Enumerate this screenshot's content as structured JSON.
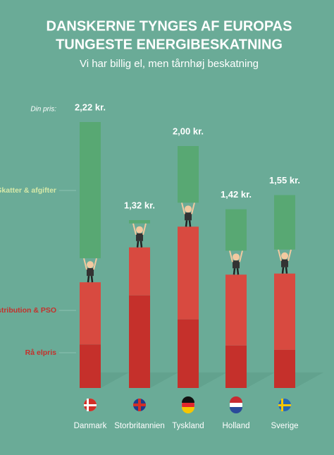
{
  "chart_data": {
    "type": "bar",
    "title_lines": [
      "DANSKERNE TYNGES AF EUROPAS",
      "TUNGESTE ENERGIBESKATNING"
    ],
    "subtitle": "Vi har billig el, men tårnhøj beskatning",
    "total_caption": "Din pris:",
    "categories": [
      "Danmark",
      "Storbritannien",
      "Tyskland",
      "Holland",
      "Sverige"
    ],
    "series": [
      {
        "name": "Rå elpris",
        "color": "#c5302b",
        "values": [
          0.4,
          0.85,
          0.63,
          0.39,
          0.35
        ]
      },
      {
        "name": "Transmission & Distribution & PSO",
        "color": "#d84a40",
        "values": [
          0.57,
          0.44,
          0.85,
          0.65,
          0.7
        ]
      },
      {
        "name": "Skatter & afgifter",
        "color": "#58a873",
        "values": [
          1.25,
          0.03,
          0.52,
          0.38,
          0.5
        ]
      }
    ],
    "totals": {
      "values": [
        2.22,
        1.32,
        2.0,
        1.42,
        1.55
      ],
      "value_labels": [
        "2,22 kr.",
        "1,32 kr.",
        "2,00 kr.",
        "1,42 kr.",
        "1,55 kr."
      ]
    }
  }
}
